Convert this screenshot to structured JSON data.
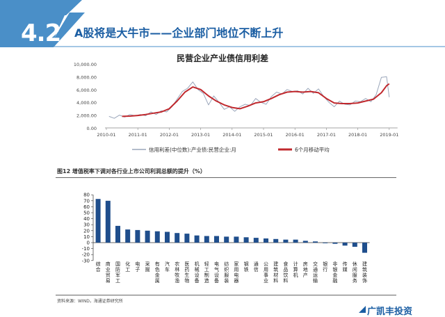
{
  "header": {
    "section_number": "4.2",
    "title": "A股将是大牛市——企业部门地位不断上升",
    "band_color": "#4a8fc8",
    "accent_color": "#1b5ea3"
  },
  "chart_data": [
    {
      "type": "line",
      "title": "民营企业产业债信用利差",
      "x_ticks": [
        "2010-01",
        "2011-01",
        "2012-01",
        "2013-01",
        "2014-01",
        "2015-01",
        "2016-01",
        "2017-01",
        "2018-01",
        "2019-01"
      ],
      "y_ticks": [
        "0.00",
        "2,000.00",
        "4,000.00",
        "6,000.00",
        "8,000.00",
        "10,000.00"
      ],
      "ylim": [
        0,
        10000
      ],
      "grid": false,
      "legend_position": "bottom",
      "series": [
        {
          "name": "信用利差(中位数):产业债:民营企业:月",
          "color": "#9aa6ba",
          "points": [
            [
              "2010-02",
              1800
            ],
            [
              "2010-04",
              1500
            ],
            [
              "2010-06",
              2000
            ],
            [
              "2010-08",
              1700
            ],
            [
              "2010-10",
              2100
            ],
            [
              "2010-12",
              1900
            ],
            [
              "2011-02",
              2100
            ],
            [
              "2011-04",
              1900
            ],
            [
              "2011-06",
              2500
            ],
            [
              "2011-08",
              2100
            ],
            [
              "2011-10",
              2700
            ],
            [
              "2011-12",
              2500
            ],
            [
              "2012-02",
              3300
            ],
            [
              "2012-04",
              4500
            ],
            [
              "2012-06",
              5700
            ],
            [
              "2012-08",
              6200
            ],
            [
              "2012-10",
              7200
            ],
            [
              "2012-12",
              6000
            ],
            [
              "2013-02",
              5400
            ],
            [
              "2013-04",
              3600
            ],
            [
              "2013-06",
              5000
            ],
            [
              "2013-08",
              4000
            ],
            [
              "2013-10",
              2900
            ],
            [
              "2013-12",
              3300
            ],
            [
              "2014-02",
              2600
            ],
            [
              "2014-04",
              3300
            ],
            [
              "2014-06",
              3700
            ],
            [
              "2014-08",
              3500
            ],
            [
              "2014-10",
              4600
            ],
            [
              "2014-12",
              4000
            ],
            [
              "2015-02",
              3700
            ],
            [
              "2015-04",
              4900
            ],
            [
              "2015-06",
              5600
            ],
            [
              "2015-08",
              5300
            ],
            [
              "2015-10",
              6000
            ],
            [
              "2015-12",
              5700
            ],
            [
              "2016-02",
              5800
            ],
            [
              "2016-04",
              5300
            ],
            [
              "2016-06",
              6200
            ],
            [
              "2016-08",
              5400
            ],
            [
              "2016-10",
              6100
            ],
            [
              "2016-12",
              4900
            ],
            [
              "2017-02",
              4000
            ],
            [
              "2017-04",
              3300
            ],
            [
              "2017-06",
              4200
            ],
            [
              "2017-08",
              3700
            ],
            [
              "2017-10",
              3600
            ],
            [
              "2017-12",
              4200
            ],
            [
              "2018-02",
              4100
            ],
            [
              "2018-04",
              4600
            ],
            [
              "2018-06",
              4100
            ],
            [
              "2018-08",
              5200
            ],
            [
              "2018-10",
              7900
            ],
            [
              "2018-12",
              8000
            ],
            [
              "2019-01",
              4800
            ]
          ]
        },
        {
          "name": "6个月移动平均",
          "color": "#c0282d",
          "points": [
            [
              "2010-07",
              1800
            ],
            [
              "2010-10",
              1850
            ],
            [
              "2011-01",
              1950
            ],
            [
              "2011-04",
              2100
            ],
            [
              "2011-07",
              2300
            ],
            [
              "2011-10",
              2500
            ],
            [
              "2012-01",
              3000
            ],
            [
              "2012-04",
              4200
            ],
            [
              "2012-07",
              5600
            ],
            [
              "2012-10",
              6400
            ],
            [
              "2013-01",
              6000
            ],
            [
              "2013-04",
              5000
            ],
            [
              "2013-07",
              4200
            ],
            [
              "2013-10",
              3600
            ],
            [
              "2014-01",
              3200
            ],
            [
              "2014-04",
              3000
            ],
            [
              "2014-07",
              3400
            ],
            [
              "2014-10",
              3900
            ],
            [
              "2015-01",
              4100
            ],
            [
              "2015-04",
              4600
            ],
            [
              "2015-07",
              5200
            ],
            [
              "2015-10",
              5600
            ],
            [
              "2016-01",
              5700
            ],
            [
              "2016-04",
              5600
            ],
            [
              "2016-07",
              5700
            ],
            [
              "2016-10",
              5500
            ],
            [
              "2017-01",
              4600
            ],
            [
              "2017-04",
              3900
            ],
            [
              "2017-07",
              3800
            ],
            [
              "2017-10",
              3800
            ],
            [
              "2018-01",
              3900
            ],
            [
              "2018-04",
              4200
            ],
            [
              "2018-07",
              4500
            ],
            [
              "2018-10",
              5500
            ],
            [
              "2018-12",
              6600
            ],
            [
              "2019-01",
              6900
            ]
          ]
        }
      ]
    },
    {
      "type": "bar",
      "title": "图12 增值税率下调对各行业上市公司利润总额的提升（%）",
      "ylim": [
        -30,
        80
      ],
      "y_ticks": [
        "80",
        "70",
        "60",
        "50",
        "40",
        "30",
        "20",
        "10",
        "0",
        "-10",
        "-20",
        "-30"
      ],
      "bar_color": "#1f4e8c",
      "categories": [
        "综合",
        "商业贸易",
        "国防军工",
        "化工",
        "电子",
        "采掘",
        "有色金属",
        "汽车",
        "农林牧渔",
        "医药生物",
        "机械设备",
        "轻工制造",
        "电气设备",
        "纺织服装",
        "家用电器",
        "钢铁",
        "通信",
        "公用事业",
        "建筑材料",
        "食品饮料",
        "计算机",
        "房地产",
        "交通运输",
        "银行",
        "非银金融",
        "传媒",
        "休闲服务",
        "建筑装饰"
      ],
      "values": [
        73,
        70,
        28,
        22,
        21,
        20,
        19,
        18,
        16,
        15,
        12,
        11,
        11,
        10,
        10,
        9,
        8,
        7,
        6,
        5,
        5,
        3,
        2,
        -1,
        -2,
        -5,
        -7,
        -17
      ]
    }
  ],
  "figure_caption": "图12 增值税率下调对各行业上市公司利润总额的提升（%）",
  "source_note": "资料来源：WIND，海通证券研究所",
  "footer": {
    "logo_text": "广凯丰投资"
  }
}
